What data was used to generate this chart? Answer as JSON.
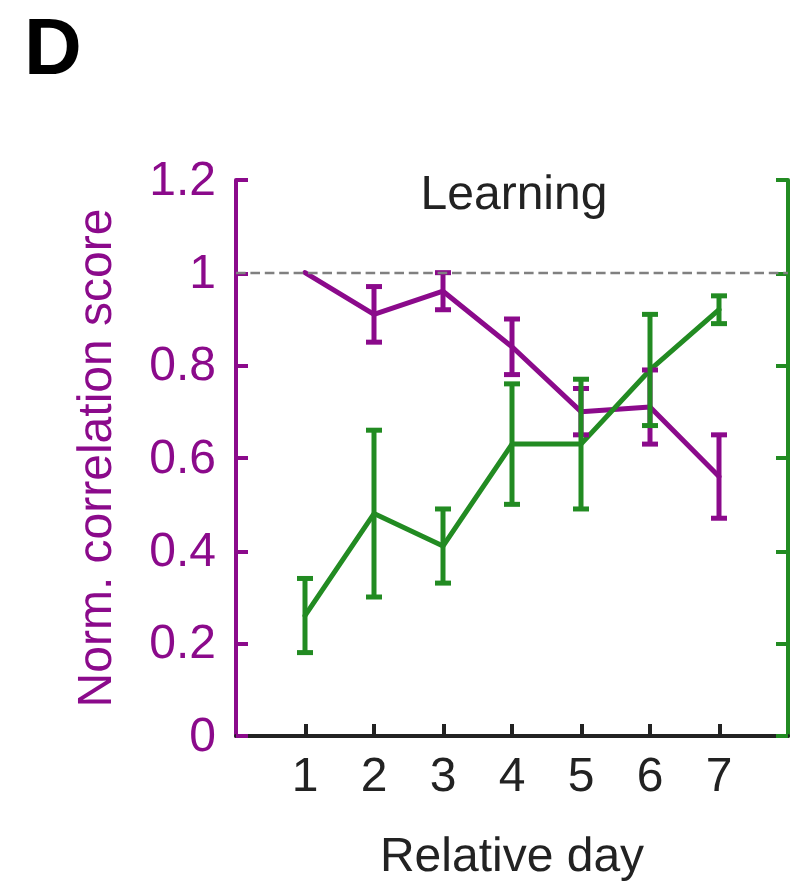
{
  "chart_data": {
    "type": "line",
    "title": "Learning",
    "xlabel": "Relative day",
    "ylabel": "Norm. correlation score",
    "annotations": [
      "D"
    ],
    "x": [
      1,
      2,
      3,
      4,
      5,
      6,
      7
    ],
    "series": [
      {
        "color": "#8b0a8b",
        "values": [
          1.0,
          0.91,
          0.96,
          0.84,
          0.7,
          0.71,
          0.56
        ],
        "errors": [
          null,
          0.06,
          0.04,
          0.06,
          0.05,
          0.08,
          0.09
        ]
      },
      {
        "color": "#228b22",
        "values": [
          0.26,
          0.48,
          0.41,
          0.63,
          0.63,
          0.79,
          0.92
        ],
        "errors": [
          0.08,
          0.18,
          0.08,
          0.13,
          0.14,
          0.12,
          0.03
        ]
      }
    ],
    "xlim": [
      0,
      8
    ],
    "xticks": [
      1,
      2,
      3,
      4,
      5,
      6,
      7
    ],
    "ylim": [
      0,
      1.2
    ],
    "yticks": [
      0,
      0.2,
      0.4,
      0.6,
      0.8,
      1,
      1.2
    ],
    "ref_lines": [
      {
        "axis": "y",
        "value": 1,
        "color": "#808080",
        "line_style": "dashed"
      }
    ],
    "grid": false,
    "marker": "none",
    "line_style": "solid"
  }
}
